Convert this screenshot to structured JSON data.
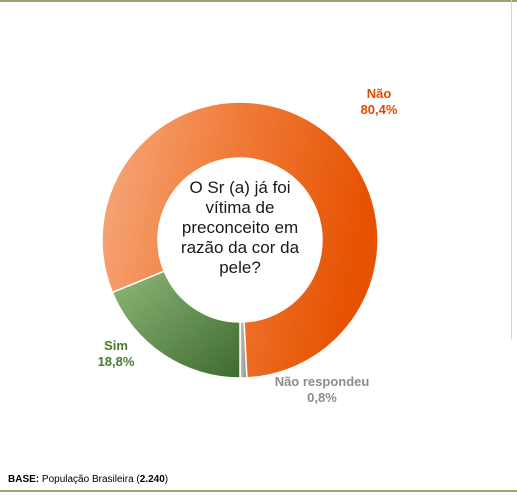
{
  "chart_data": {
    "type": "pie",
    "donut": true,
    "center_text": "O Sr (a) já foi vítima de preconceito em razão da cor da pele?",
    "slices": [
      {
        "label": "Não",
        "value": 80.4,
        "value_label": "80,4%",
        "color": "#e85a0c",
        "label_color": "#e04a00"
      },
      {
        "label": "Não respondeu",
        "value": 0.8,
        "value_label": "0,8%",
        "color": "#9a9a9a",
        "label_color": "#8c8c8c"
      },
      {
        "label": "Sim",
        "value": 18.8,
        "value_label": "18,8%",
        "color": "#4e7a3c",
        "label_color": "#4a7a2a"
      }
    ]
  },
  "footer": {
    "base_label": "BASE:",
    "base_text": "População Brasileira (",
    "base_count": "2.240",
    "base_close": ")"
  }
}
